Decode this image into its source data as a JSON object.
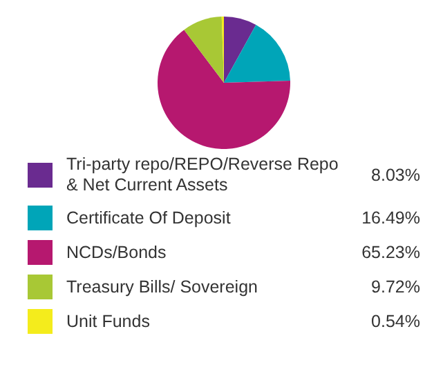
{
  "chart_data": {
    "type": "pie",
    "categories": [
      "Tri-party repo/REPO/Reverse Repo & Net Current Assets",
      "Certificate Of Deposit",
      "NCDs/Bonds",
      "Treasury Bills/ Sovereign",
      "Unit Funds"
    ],
    "values": [
      8.03,
      16.49,
      65.23,
      9.72,
      0.54
    ],
    "value_labels": [
      "8.03%",
      "16.49%",
      "65.23%",
      "9.72%",
      "0.54%"
    ],
    "colors": [
      "#6a2b90",
      "#00a5b8",
      "#b6186f",
      "#a8c835",
      "#f4ec1c"
    ],
    "legend": "bottom"
  }
}
